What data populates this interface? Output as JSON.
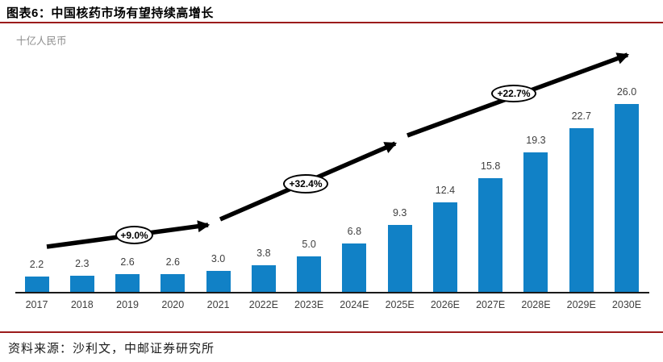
{
  "header": {
    "title": "图表6：中国核药市场有望持续高增长"
  },
  "chart_data": {
    "type": "bar",
    "title": "图表6：中国核药市场有望持续高增长",
    "ylabel": "十亿人民币",
    "xlabel": "",
    "categories": [
      "2017",
      "2018",
      "2019",
      "2020",
      "2021",
      "2022E",
      "2023E",
      "2024E",
      "2025E",
      "2026E",
      "2027E",
      "2028E",
      "2029E",
      "2030E"
    ],
    "values": [
      2.2,
      2.3,
      2.6,
      2.6,
      3.0,
      3.8,
      5.0,
      6.8,
      9.3,
      12.4,
      15.8,
      19.3,
      22.7,
      26.0
    ],
    "ylim": [
      0,
      28
    ],
    "grid": false,
    "legend": false,
    "value_labels_shown": true,
    "annotations": [
      {
        "label": "+9.0%",
        "meaning": "CAGR 2017-2021 segment"
      },
      {
        "label": "+32.4%",
        "meaning": "CAGR 2021-2025E segment"
      },
      {
        "label": "+22.7%",
        "meaning": "CAGR 2025E-2030E segment"
      }
    ]
  },
  "colors": {
    "bar": "#1181C6",
    "rule": "#9B1B1B",
    "axis": "#1a1a1a",
    "trend_arrow": "#000000"
  },
  "footer": {
    "source": "资料来源：沙利文，中邮证券研究所"
  }
}
